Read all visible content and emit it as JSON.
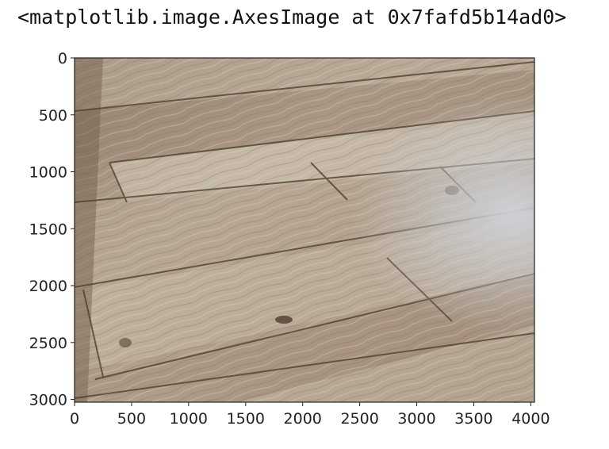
{
  "output_text": "<matplotlib.image.AxesImage at 0x7fafd5b14ad0>",
  "image": {
    "subject": "wood-floor-photo",
    "colors": {
      "light": "#d2c8bb",
      "mid": "#b4a694",
      "dark": "#6e5b49",
      "seam": "#4a3a2c",
      "glare": "#c6c8cc"
    }
  },
  "axes": {
    "x_range": [
      0,
      4032
    ],
    "y_range": [
      3024,
      0
    ],
    "x_ticks": [
      {
        "value": 0,
        "label": "0"
      },
      {
        "value": 500,
        "label": "500"
      },
      {
        "value": 1000,
        "label": "1000"
      },
      {
        "value": 1500,
        "label": "1500"
      },
      {
        "value": 2000,
        "label": "2000"
      },
      {
        "value": 2500,
        "label": "2500"
      },
      {
        "value": 3000,
        "label": "3000"
      },
      {
        "value": 3500,
        "label": "3500"
      },
      {
        "value": 4000,
        "label": "4000"
      }
    ],
    "y_ticks": [
      {
        "value": 0,
        "label": "0"
      },
      {
        "value": 500,
        "label": "500"
      },
      {
        "value": 1000,
        "label": "1000"
      },
      {
        "value": 1500,
        "label": "1500"
      },
      {
        "value": 2000,
        "label": "2000"
      },
      {
        "value": 2500,
        "label": "2500"
      },
      {
        "value": 3000,
        "label": "3000"
      }
    ]
  }
}
